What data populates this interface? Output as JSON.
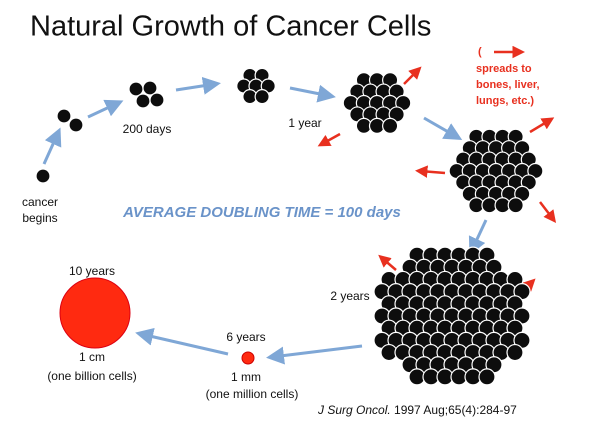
{
  "title": "Natural Growth of Cancer Cells",
  "start": {
    "lines": [
      "cancer",
      "begins"
    ]
  },
  "stage_200_days": "200 days",
  "stage_1_year": "1 year",
  "spread_note": {
    "open": "(",
    "lines": [
      "spreads to",
      "bones, liver,",
      "lungs, etc.)"
    ]
  },
  "doubling_time": "AVERAGE DOUBLING TIME = 100 days",
  "stage_2_years": "2 years",
  "stage_6_years": {
    "time": "6 years",
    "size": "1 mm",
    "count": "(one million cells)"
  },
  "stage_10_years": {
    "time": "10 years",
    "size": "1 cm",
    "count": "(one billion cells)"
  },
  "citation": {
    "journal": "J Surg Oncol.",
    "rest": " 1997 Aug;65(4):284-97"
  }
}
